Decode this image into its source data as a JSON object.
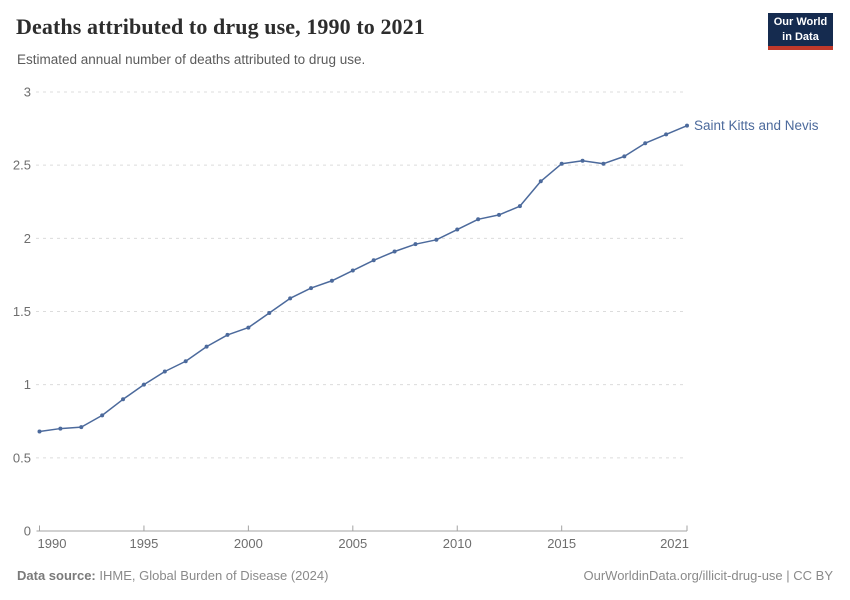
{
  "chart_data": {
    "type": "line",
    "title": "Deaths attributed to drug use, 1990 to 2021",
    "subtitle": "Estimated annual number of deaths attributed to drug use.",
    "xlabel": "",
    "ylabel": "",
    "xlim": [
      1990,
      2021
    ],
    "ylim": [
      0,
      3
    ],
    "xticks": [
      1990,
      1995,
      2000,
      2005,
      2010,
      2015,
      2021
    ],
    "yticks": [
      0,
      0.5,
      1,
      1.5,
      2,
      2.5,
      3
    ],
    "ytick_labels": [
      "0",
      "0.5",
      "1",
      "1.5",
      "2",
      "2.5",
      "3"
    ],
    "grid": "horizontal-dashed",
    "legend_position": "end-of-line-label",
    "series": [
      {
        "name": "Saint Kitts and Nevis",
        "color": "#4C6A9C",
        "x": [
          1990,
          1991,
          1992,
          1993,
          1994,
          1995,
          1996,
          1997,
          1998,
          1999,
          2000,
          2001,
          2002,
          2003,
          2004,
          2005,
          2006,
          2007,
          2008,
          2009,
          2010,
          2011,
          2012,
          2013,
          2014,
          2015,
          2016,
          2017,
          2018,
          2019,
          2020,
          2021
        ],
        "values": [
          0.68,
          0.7,
          0.71,
          0.79,
          0.9,
          1.0,
          1.09,
          1.16,
          1.26,
          1.34,
          1.39,
          1.49,
          1.59,
          1.66,
          1.71,
          1.78,
          1.85,
          1.91,
          1.96,
          1.99,
          2.06,
          2.13,
          2.16,
          2.22,
          2.39,
          2.51,
          2.53,
          2.51,
          2.56,
          2.65,
          2.71,
          2.77
        ]
      }
    ]
  },
  "logo": {
    "line1": "Our World",
    "line2": "in Data"
  },
  "footer": {
    "source_label": "Data source:",
    "source_text": " IHME, Global Burden of Disease (2024)",
    "credit": "OurWorldinData.org/illicit-drug-use | CC BY"
  },
  "colors": {
    "line": "#4C6A9C",
    "logo_bg": "#152B4F",
    "logo_stripe": "#C0392B",
    "title_text": "#2D2D2D",
    "subtitle_text": "#5B5B5B",
    "axis_text": "#6E6E6E",
    "gridline": "#DCDCDC",
    "axis_line": "#A3A3A3",
    "footer_text": "#8A8A8A"
  }
}
